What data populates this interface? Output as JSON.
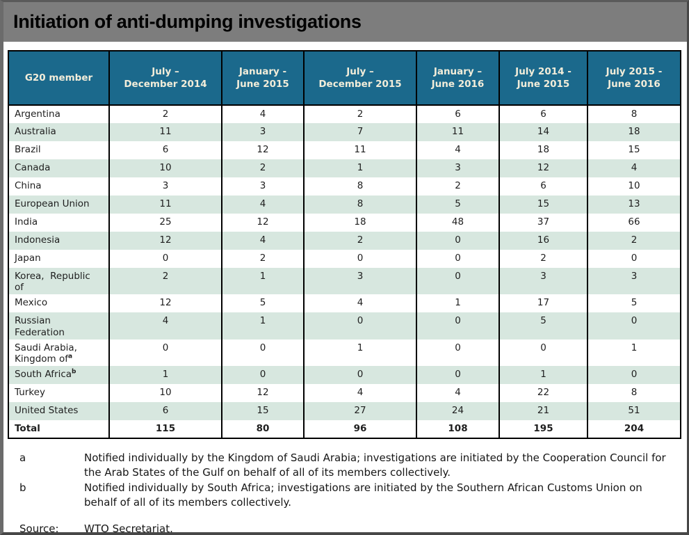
{
  "title": "Initiation of anti-dumping investigations",
  "colors": {
    "titlebar_bg": "#7d7d7d",
    "header_bg": "#1b698c",
    "header_text": "#f2edda",
    "row_alt_bg": "#d7e7df",
    "border": "#000000"
  },
  "table": {
    "header": [
      "G20 member",
      "July –\nDecember 2014",
      "January -\nJune 2015",
      "July –\nDecember 2015",
      "January –\nJune 2016",
      "July 2014 -\nJune 2015",
      "July 2015 -\nJune 2016"
    ],
    "rows": [
      {
        "name": "Argentina",
        "values": [
          "2",
          "4",
          "2",
          "6",
          "6",
          "8"
        ]
      },
      {
        "name": "Australia",
        "values": [
          "11",
          "3",
          "7",
          "11",
          "14",
          "18"
        ]
      },
      {
        "name": "Brazil",
        "values": [
          "6",
          "12",
          "11",
          "4",
          "18",
          "15"
        ]
      },
      {
        "name": "Canada",
        "values": [
          "10",
          "2",
          "1",
          "3",
          "12",
          "4"
        ]
      },
      {
        "name": "China",
        "values": [
          "3",
          "3",
          "8",
          "2",
          "6",
          "10"
        ]
      },
      {
        "name": "European Union",
        "values": [
          "11",
          "4",
          "8",
          "5",
          "15",
          "13"
        ]
      },
      {
        "name": "India",
        "values": [
          "25",
          "12",
          "18",
          "48",
          "37",
          "66"
        ]
      },
      {
        "name": "Indonesia",
        "values": [
          "12",
          "4",
          "2",
          "0",
          "16",
          "2"
        ]
      },
      {
        "name": "Japan",
        "values": [
          "0",
          "2",
          "0",
          "0",
          "2",
          "0"
        ]
      },
      {
        "name": "Korea,  Republic\nof",
        "values": [
          "2",
          "1",
          "3",
          "0",
          "3",
          "3"
        ]
      },
      {
        "name": "Mexico",
        "values": [
          "12",
          "5",
          "4",
          "1",
          "17",
          "5"
        ]
      },
      {
        "name": "Russian\nFederation",
        "values": [
          "4",
          "1",
          "0",
          "0",
          "5",
          "0"
        ]
      },
      {
        "name": "Saudi Arabia,\nKingdom of",
        "sup": "a",
        "values": [
          "0",
          "0",
          "1",
          "0",
          "0",
          "1"
        ]
      },
      {
        "name": "South Africa",
        "sup": "b",
        "values": [
          "1",
          "0",
          "0",
          "0",
          "1",
          "0"
        ]
      },
      {
        "name": "Turkey",
        "values": [
          "10",
          "12",
          "4",
          "4",
          "22",
          "8"
        ]
      },
      {
        "name": "United States",
        "values": [
          "6",
          "15",
          "27",
          "24",
          "21",
          "51"
        ]
      }
    ],
    "total": {
      "name": "Total",
      "values": [
        "115",
        "80",
        "96",
        "108",
        "195",
        "204"
      ]
    }
  },
  "footnotes": [
    {
      "label": "a",
      "text": "Notified individually by the Kingdom of Saudi Arabia; investigations are initiated by the Cooperation Council for the Arab States of the Gulf on behalf of all of its members collectively."
    },
    {
      "label": "b",
      "text": "Notified individually by South Africa; investigations are initiated by the Southern African Customs Union on behalf of all of its members collectively."
    }
  ],
  "source": {
    "label": "Source:",
    "text": "WTO Secretariat."
  }
}
